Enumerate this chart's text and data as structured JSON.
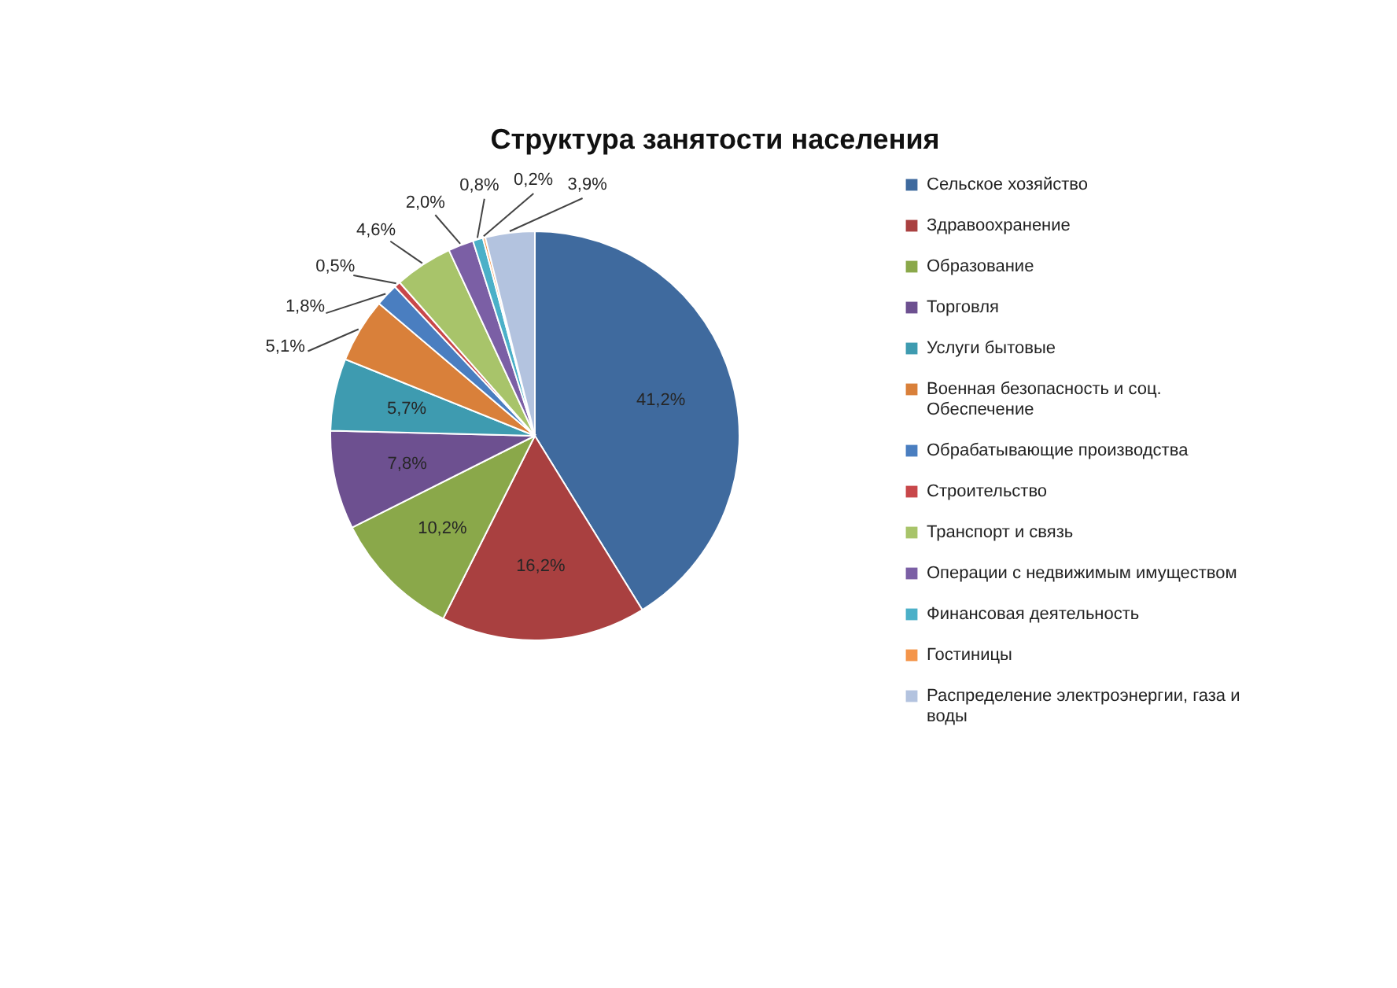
{
  "chart_data": {
    "type": "pie",
    "title": "Структура занятости населения",
    "categories": [
      "Сельское хозяйство",
      "Здравоохранение",
      "Образование",
      "Торговля",
      "Услуги бытовые",
      "Военная безопасность и соц. Обеспечение",
      "Обрабатывающие производства",
      "Строительство",
      "Транспорт и связь",
      "Операции с недвижимым имуществом",
      "Финансовая деятельность",
      "Гостиницы",
      "Распределение электроэнергии, газа и воды"
    ],
    "values": [
      41.2,
      16.2,
      10.2,
      7.8,
      5.7,
      5.1,
      1.8,
      0.5,
      4.6,
      2.0,
      0.8,
      0.2,
      3.9
    ],
    "colors": [
      "#3f6a9e",
      "#a94040",
      "#8aa84a",
      "#6d5090",
      "#3e9bb0",
      "#d9803a",
      "#4a7ec0",
      "#c8474a",
      "#a8c46a",
      "#7b5fa5",
      "#4bb0c8",
      "#f4954a",
      "#b3c3df"
    ],
    "value_labels": [
      "41,2%",
      "16,2%",
      "10,2%",
      "7,8%",
      "5,7%",
      "5,1%",
      "1,8%",
      "0,5%",
      "4,6%",
      "2,0%",
      "0,8%",
      "0,2%",
      "3,9%"
    ],
    "legend": "right"
  }
}
